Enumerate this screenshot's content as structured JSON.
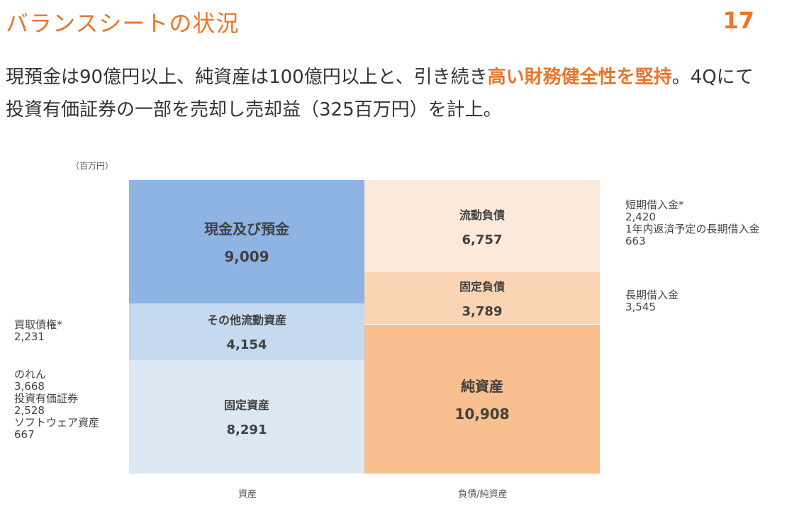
{
  "header": {
    "title": "バランスシートの状況",
    "page_number": "17"
  },
  "lead": {
    "part1": "現預金は90億円以上、純資産は100億円以上と、引き続き",
    "highlight": "高い財務健全性を堅持",
    "part2": "。4Qにて投資有価証券の一部を売却し売却益（325百万円）を計上。"
  },
  "chart_data": {
    "type": "bar",
    "unit_label": "（百万円）",
    "categories": [
      "資産",
      "負債/純資産"
    ],
    "stacks": [
      {
        "category": "資産",
        "segments": [
          {
            "name": "現金及び預金",
            "value": 9009,
            "value_label": "9,009",
            "color": "#8eb4e3"
          },
          {
            "name": "その他流動資産",
            "value": 4154,
            "value_label": "4,154",
            "color": "#c5d9f1"
          },
          {
            "name": "固定資産",
            "value": 8291,
            "value_label": "8,291",
            "color": "#dde8f5"
          }
        ]
      },
      {
        "category": "負債/純資産",
        "segments": [
          {
            "name": "流動負債",
            "value": 6757,
            "value_label": "6,757",
            "color": "#fde9d9"
          },
          {
            "name": "固定負債",
            "value": 3789,
            "value_label": "3,789",
            "color": "#fbd4b4"
          },
          {
            "name": "純資産",
            "value": 10908,
            "value_label": "10,908",
            "color": "#f9bf8f"
          }
        ]
      }
    ],
    "annotations": {
      "left_receivables": [
        "買取債権*",
        "2,231"
      ],
      "left_fixed": [
        "のれん",
        "3,668",
        "投資有価証券",
        "2,528",
        "ソフトウェア資産",
        "667"
      ],
      "right_current": [
        "短期借入金*",
        "2,420",
        "1年内返済予定の長期借入金",
        "663"
      ],
      "right_fixed": [
        "長期借入金",
        "3,545"
      ]
    }
  },
  "colors": {
    "accent": "#e8762b",
    "text": "#333333"
  }
}
